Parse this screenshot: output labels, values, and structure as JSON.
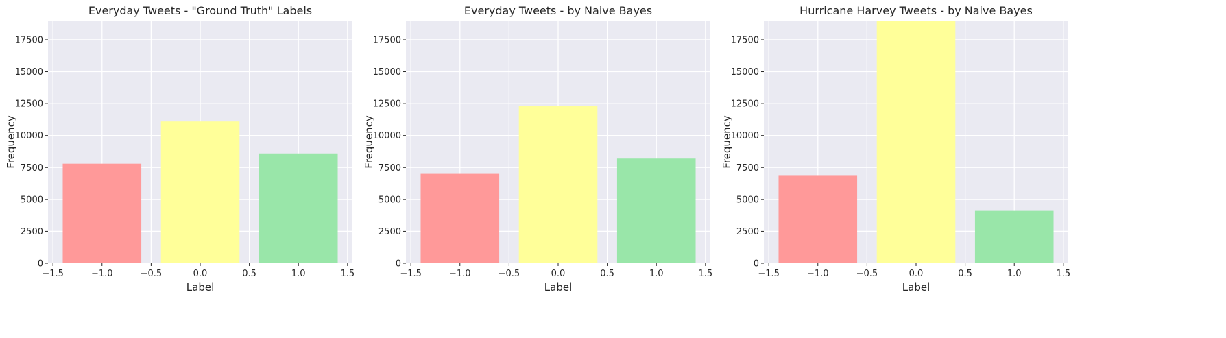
{
  "chart_data": [
    {
      "type": "bar",
      "title": "Everyday Tweets - \"Ground Truth\" Labels",
      "xlabel": "Label",
      "ylabel": "Frequency",
      "x": [
        -1.0,
        0.0,
        1.0
      ],
      "values": [
        7800,
        11100,
        8600
      ],
      "bar_width": 0.8,
      "colors": [
        "#ff9999",
        "#ffff99",
        "#99e6a9"
      ],
      "xlim": [
        -1.55,
        1.55
      ],
      "ylim": [
        0,
        19000
      ],
      "xticks": [
        -1.5,
        -1.0,
        -0.5,
        0.0,
        0.5,
        1.0,
        1.5
      ],
      "xtick_labels": [
        "−1.5",
        "−1.0",
        "−0.5",
        "0.0",
        "0.5",
        "1.0",
        "1.5"
      ],
      "yticks": [
        0,
        2500,
        5000,
        7500,
        10000,
        12500,
        15000,
        17500
      ],
      "ytick_labels": [
        "0",
        "2500",
        "5000",
        "7500",
        "10000",
        "12500",
        "15000",
        "17500"
      ],
      "grid": true
    },
    {
      "type": "bar",
      "title": "Everyday Tweets - by Naive Bayes",
      "xlabel": "Label",
      "ylabel": "Frequency",
      "x": [
        -1.0,
        0.0,
        1.0
      ],
      "values": [
        7000,
        12300,
        8200
      ],
      "bar_width": 0.8,
      "colors": [
        "#ff9999",
        "#ffff99",
        "#99e6a9"
      ],
      "xlim": [
        -1.55,
        1.55
      ],
      "ylim": [
        0,
        19000
      ],
      "xticks": [
        -1.5,
        -1.0,
        -0.5,
        0.0,
        0.5,
        1.0,
        1.5
      ],
      "xtick_labels": [
        "−1.5",
        "−1.0",
        "−0.5",
        "0.0",
        "0.5",
        "1.0",
        "1.5"
      ],
      "yticks": [
        0,
        2500,
        5000,
        7500,
        10000,
        12500,
        15000,
        17500
      ],
      "ytick_labels": [
        "0",
        "2500",
        "5000",
        "7500",
        "10000",
        "12500",
        "15000",
        "17500"
      ],
      "grid": true
    },
    {
      "type": "bar",
      "title": "Hurricane Harvey Tweets - by Naive Bayes",
      "xlabel": "Label",
      "ylabel": "Frequency",
      "x": [
        -1.0,
        0.0,
        1.0
      ],
      "values": [
        6900,
        19000,
        4100
      ],
      "bar_width": 0.8,
      "colors": [
        "#ff9999",
        "#ffff99",
        "#99e6a9"
      ],
      "xlim": [
        -1.55,
        1.55
      ],
      "ylim": [
        0,
        19000
      ],
      "xticks": [
        -1.5,
        -1.0,
        -0.5,
        0.0,
        0.5,
        1.0,
        1.5
      ],
      "xtick_labels": [
        "−1.5",
        "−1.0",
        "−0.5",
        "0.0",
        "0.5",
        "1.0",
        "1.5"
      ],
      "yticks": [
        0,
        2500,
        5000,
        7500,
        10000,
        12500,
        15000,
        17500
      ],
      "ytick_labels": [
        "0",
        "2500",
        "5000",
        "7500",
        "10000",
        "12500",
        "15000",
        "17500"
      ],
      "grid": true
    }
  ]
}
